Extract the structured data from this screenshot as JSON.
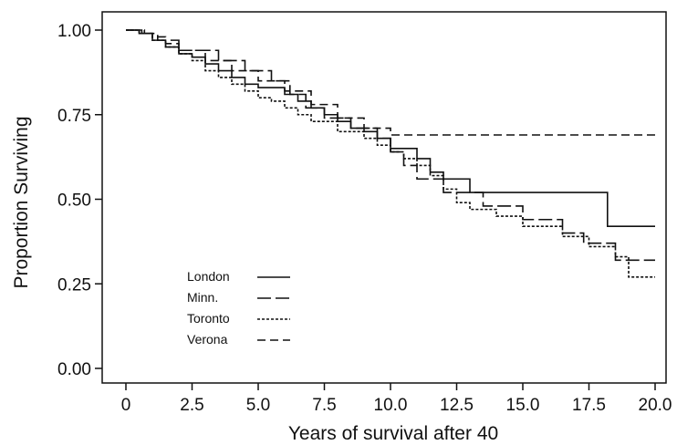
{
  "chart_data": {
    "type": "line",
    "subtype": "step",
    "title": "",
    "xlabel": "Years of survival after 40",
    "ylabel": "Proportion Surviving",
    "xlim": [
      0,
      20
    ],
    "ylim": [
      0,
      1
    ],
    "x_ticks": [
      0,
      2.5,
      5,
      7.5,
      10,
      12.5,
      15,
      17.5,
      20
    ],
    "x_tick_labels": [
      "0",
      "2.5",
      "5.0",
      "7.5",
      "10.0",
      "12.5",
      "15.0",
      "17.5",
      "20.0"
    ],
    "y_ticks": [
      0,
      0.25,
      0.5,
      0.75,
      1
    ],
    "y_tick_labels": [
      "0.00",
      "0.25",
      "0.50",
      "0.75",
      "1.00"
    ],
    "grid": false,
    "legend_position": "lower-left",
    "series": [
      {
        "name": "London",
        "line_style": "solid",
        "x": [
          0,
          0.5,
          1.0,
          1.5,
          2.0,
          2.5,
          3.0,
          3.5,
          4.0,
          4.5,
          5.0,
          6.0,
          6.5,
          7.0,
          7.5,
          8.0,
          8.5,
          9.0,
          9.5,
          10.0,
          11.0,
          11.5,
          12.0,
          13.0,
          18.2,
          20.0
        ],
        "y": [
          1.0,
          0.99,
          0.97,
          0.95,
          0.93,
          0.92,
          0.9,
          0.88,
          0.86,
          0.84,
          0.83,
          0.81,
          0.79,
          0.77,
          0.75,
          0.73,
          0.71,
          0.7,
          0.68,
          0.65,
          0.62,
          0.58,
          0.56,
          0.52,
          0.42,
          0.42
        ]
      },
      {
        "name": "Minn.",
        "line_style": "long-dash",
        "x": [
          0,
          0.7,
          1.2,
          2.0,
          3.5,
          4.5,
          5.5,
          6.2,
          6.8,
          7.5,
          8.5,
          9.5,
          10.0,
          10.5,
          11.0,
          12.0,
          13.5,
          15.0,
          16.5,
          17.3,
          18.5,
          20.0
        ],
        "y": [
          1.0,
          0.99,
          0.97,
          0.94,
          0.91,
          0.88,
          0.85,
          0.81,
          0.77,
          0.74,
          0.71,
          0.68,
          0.64,
          0.6,
          0.56,
          0.52,
          0.48,
          0.44,
          0.4,
          0.37,
          0.32,
          0.32
        ]
      },
      {
        "name": "Toronto",
        "line_style": "short-dash",
        "x": [
          0,
          0.5,
          1.0,
          1.5,
          2.0,
          2.5,
          3.0,
          3.5,
          4.0,
          4.5,
          5.0,
          5.5,
          6.0,
          6.5,
          7.0,
          8.0,
          9.0,
          9.5,
          10.0,
          10.5,
          11.0,
          11.5,
          12.0,
          12.5,
          13.0,
          14.0,
          15.0,
          16.5,
          17.5,
          18.5,
          19.0,
          20.0
        ],
        "y": [
          1.0,
          0.99,
          0.97,
          0.95,
          0.93,
          0.91,
          0.88,
          0.86,
          0.84,
          0.82,
          0.8,
          0.79,
          0.77,
          0.75,
          0.73,
          0.7,
          0.68,
          0.66,
          0.64,
          0.62,
          0.6,
          0.57,
          0.53,
          0.49,
          0.47,
          0.45,
          0.42,
          0.39,
          0.36,
          0.33,
          0.27,
          0.27
        ]
      },
      {
        "name": "Verona",
        "line_style": "dash",
        "x": [
          0,
          0.6,
          1.0,
          1.5,
          2.0,
          3.0,
          4.0,
          5.0,
          6.0,
          7.0,
          8.0,
          9.0,
          10.0,
          20.0
        ],
        "y": [
          1.0,
          0.99,
          0.98,
          0.96,
          0.94,
          0.91,
          0.88,
          0.85,
          0.82,
          0.78,
          0.74,
          0.71,
          0.69,
          0.69
        ]
      }
    ]
  }
}
